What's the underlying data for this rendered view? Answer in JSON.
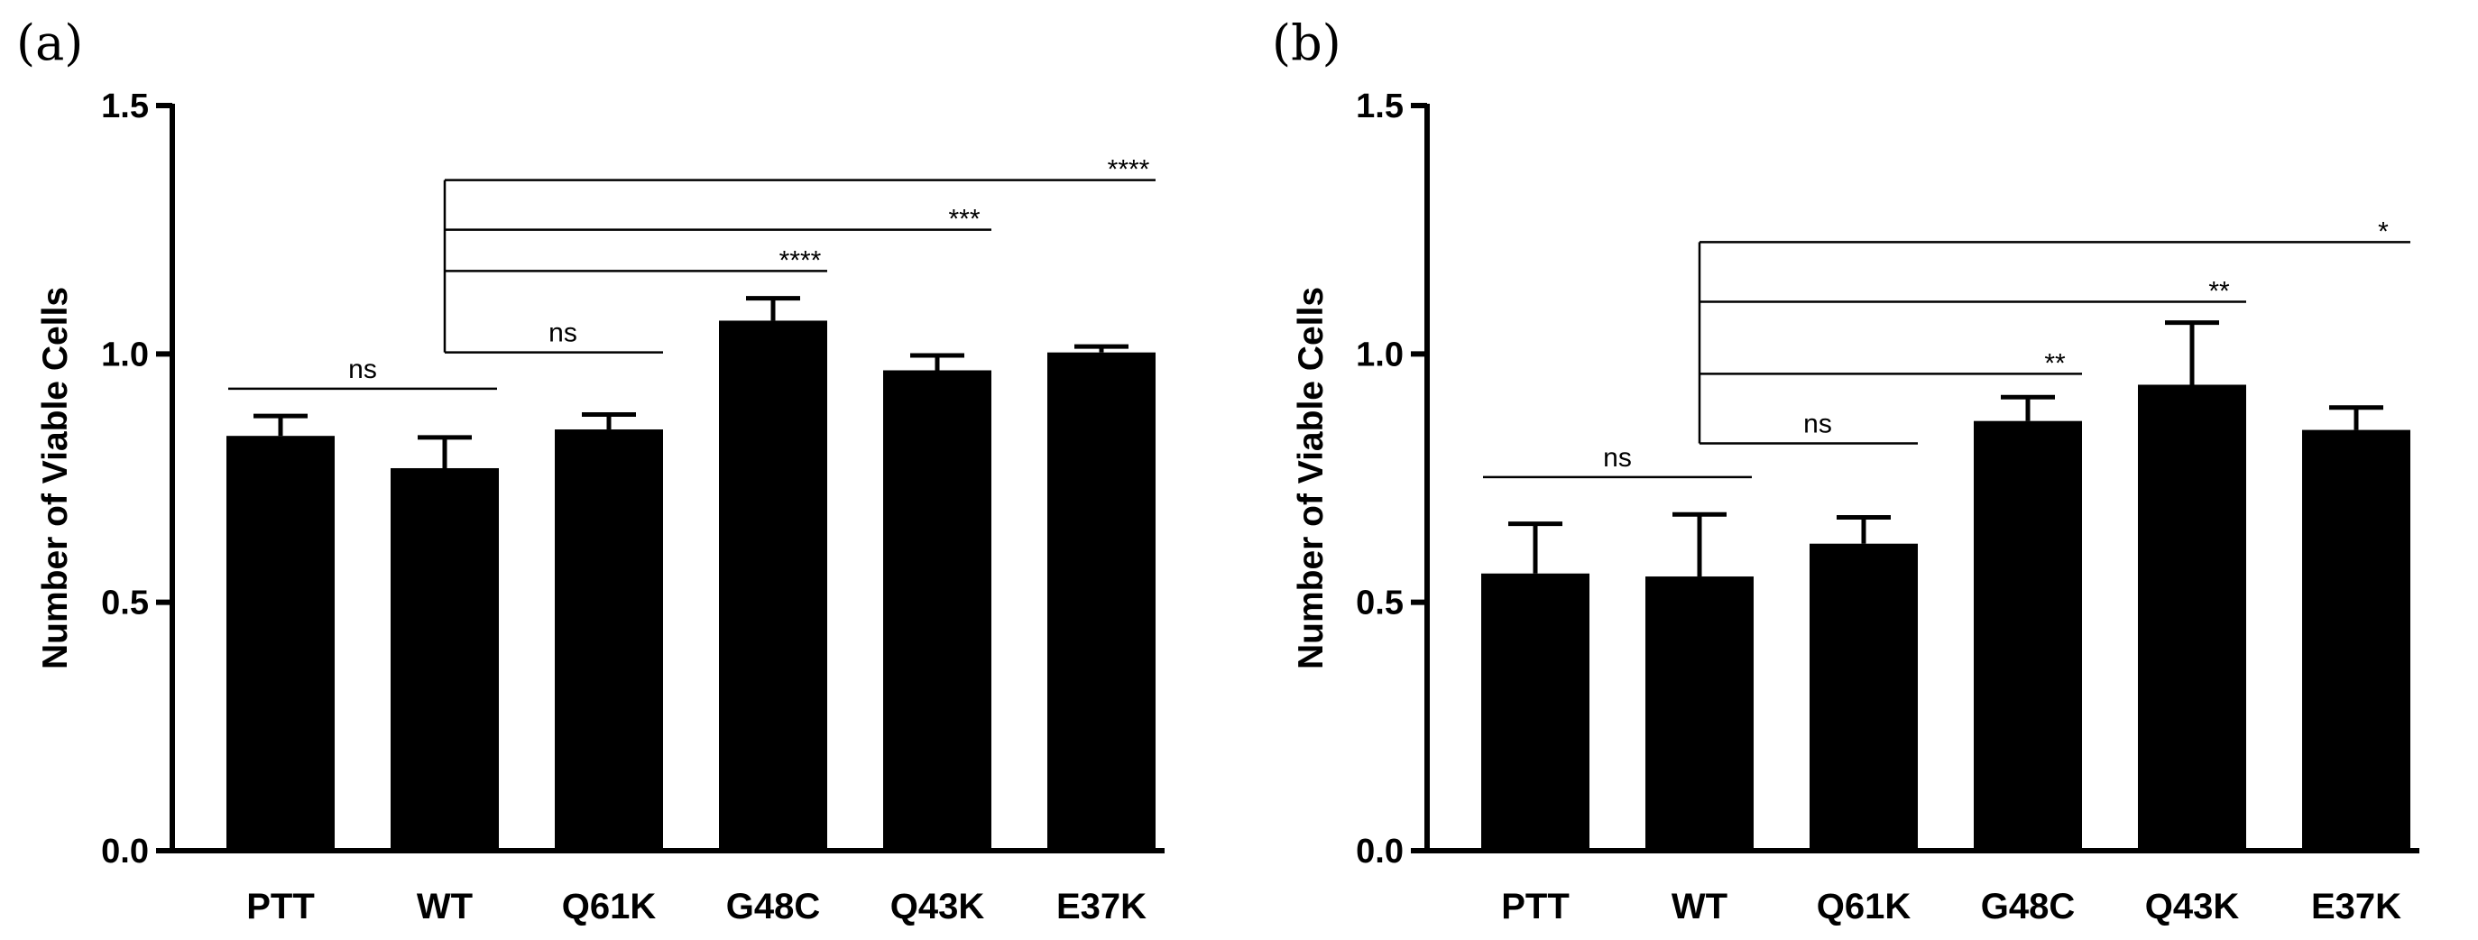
{
  "chart_data": [
    {
      "panel_label": "(a)",
      "type": "bar",
      "categories": [
        "PTT",
        "WT",
        "Q61K",
        "G48C",
        "Q43K",
        "E37K"
      ],
      "values": [
        0.835,
        0.77,
        0.848,
        1.067,
        0.967,
        1.003
      ],
      "errors": [
        0.04,
        0.062,
        0.03,
        0.045,
        0.03,
        0.012
      ],
      "ylabel": "Number of  Viable  Cells",
      "ylim": [
        0,
        1.5
      ],
      "yticks": [
        "0.0",
        "0.5",
        "1.0",
        "1.5"
      ],
      "significance": [
        {
          "from": "PTT",
          "to": "WT",
          "label": "ns",
          "level": 0.93
        },
        {
          "from": "WT",
          "to": "Q61K",
          "label": "ns",
          "level": 1.003
        },
        {
          "from": "WT",
          "to": "G48C",
          "label": "****",
          "level": 1.167
        },
        {
          "from": "WT",
          "to": "Q43K",
          "label": "***",
          "level": 1.25
        },
        {
          "from": "WT",
          "to": "E37K",
          "label": "****",
          "level": 1.35
        }
      ]
    },
    {
      "panel_label": "(b)",
      "type": "bar",
      "categories": [
        "PTT",
        "WT",
        "Q61K",
        "G48C",
        "Q43K",
        "E37K"
      ],
      "values": [
        0.558,
        0.552,
        0.618,
        0.865,
        0.938,
        0.847
      ],
      "errors": [
        0.1,
        0.125,
        0.053,
        0.048,
        0.125,
        0.045
      ],
      "ylabel": "Number of  Viable  Cells",
      "ylim": [
        0,
        1.5
      ],
      "yticks": [
        "0.0",
        "0.5",
        "1.0",
        "1.5"
      ],
      "significance": [
        {
          "from": "PTT",
          "to": "WT",
          "label": "ns",
          "level": 0.752
        },
        {
          "from": "WT",
          "to": "Q61K",
          "label": "ns",
          "level": 0.82
        },
        {
          "from": "WT",
          "to": "G48C",
          "label": "**",
          "level": 0.96
        },
        {
          "from": "WT",
          "to": "Q43K",
          "label": "**",
          "level": 1.105
        },
        {
          "from": "WT",
          "to": "E37K",
          "label": "*",
          "level": 1.225
        }
      ]
    }
  ]
}
